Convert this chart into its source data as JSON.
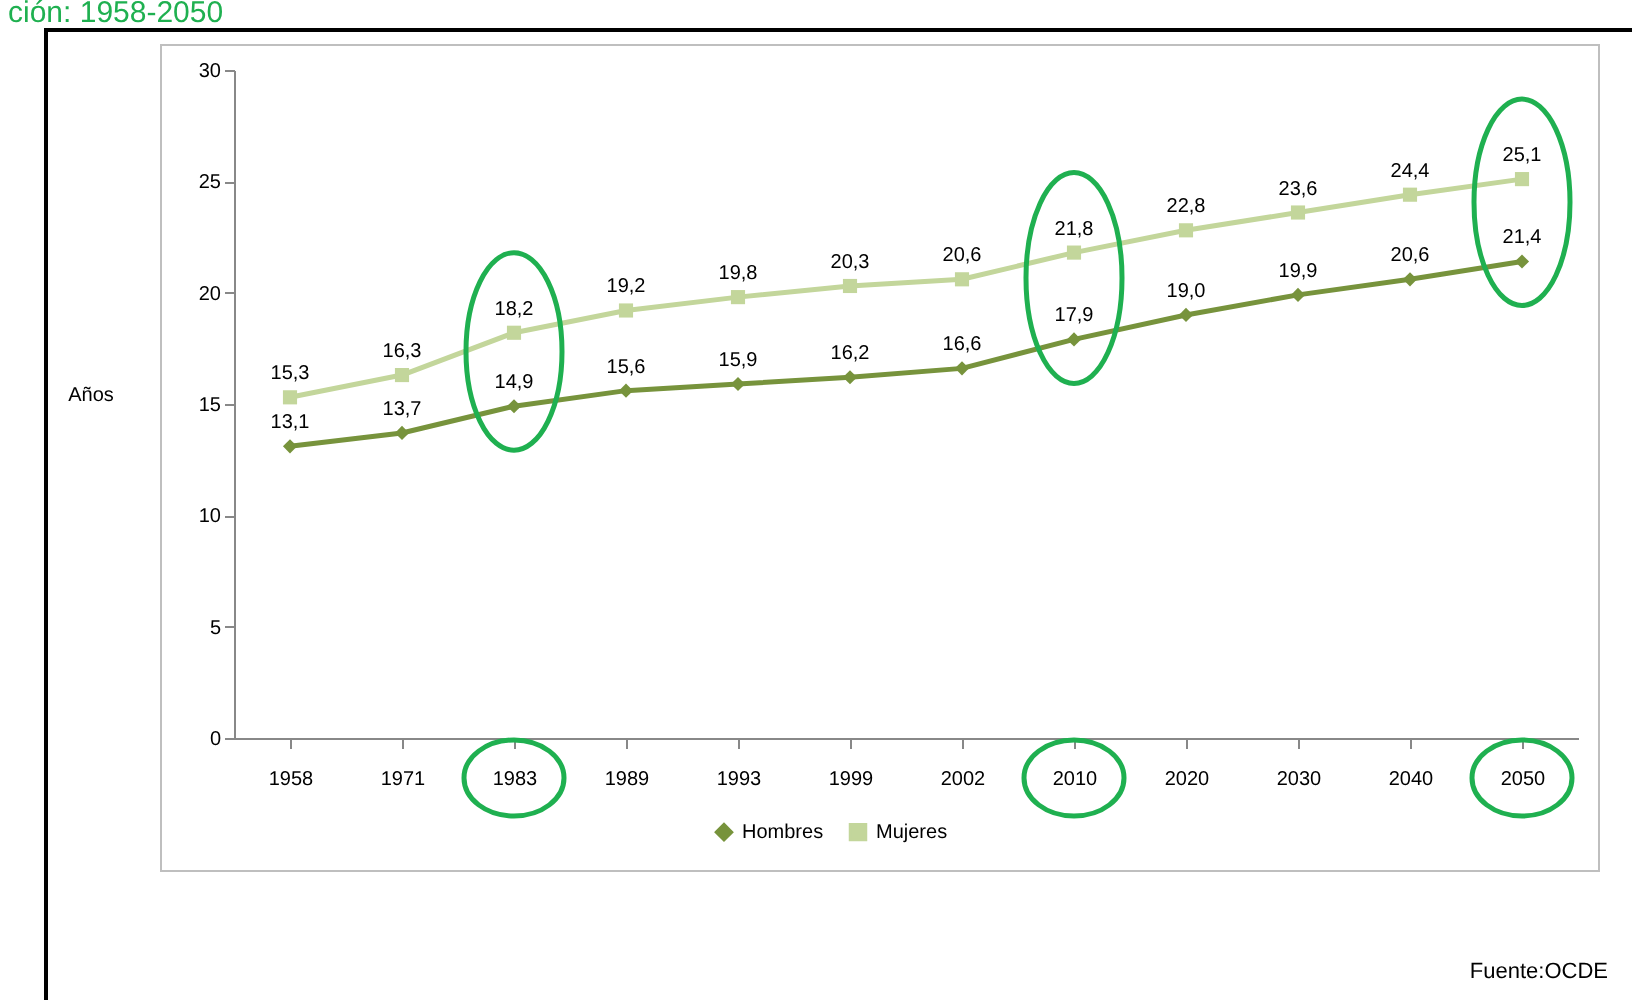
{
  "chart_data": {
    "type": "line",
    "title": "ción: 1958-2050",
    "ylabel": "Años",
    "categories": [
      "1958",
      "1971",
      "1983",
      "1989",
      "1993",
      "1999",
      "2002",
      "2010",
      "2020",
      "2030",
      "2040",
      "2050"
    ],
    "series": [
      {
        "name": "Hombres",
        "color": "#77933c",
        "marker": "diamond",
        "values": [
          13.1,
          13.7,
          14.9,
          15.6,
          15.9,
          16.2,
          16.6,
          17.9,
          19.0,
          19.9,
          20.6,
          21.4
        ],
        "value_labels": [
          "13,1",
          "13,7",
          "14,9",
          "15,6",
          "15,9",
          "16,2",
          "16,6",
          "17,9",
          "19,0",
          "19,9",
          "20,6",
          "21,4"
        ]
      },
      {
        "name": "Mujeres",
        "color": "#c3d69b",
        "marker": "square",
        "values": [
          15.3,
          16.3,
          18.2,
          19.2,
          19.8,
          20.3,
          20.6,
          21.8,
          22.8,
          23.6,
          24.4,
          25.1
        ],
        "value_labels": [
          "15,3",
          "16,3",
          "18,2",
          "19,2",
          "19,8",
          "20,3",
          "20,6",
          "21,8",
          "22,8",
          "23,6",
          "24,4",
          "25,1"
        ]
      }
    ],
    "ylim": [
      0,
      30
    ],
    "yticks": [
      0,
      5,
      10,
      15,
      20,
      25,
      30
    ],
    "grid": false,
    "legend": "bottom",
    "annotations": [
      "Fuente:OCDE"
    ]
  }
}
